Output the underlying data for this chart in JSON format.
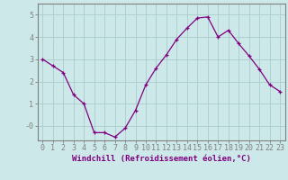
{
  "x": [
    0,
    1,
    2,
    3,
    4,
    5,
    6,
    7,
    8,
    9,
    10,
    11,
    12,
    13,
    14,
    15,
    16,
    17,
    18,
    19,
    20,
    21,
    22,
    23
  ],
  "y": [
    3.0,
    2.7,
    2.4,
    1.4,
    1.0,
    -0.3,
    -0.3,
    -0.5,
    -0.1,
    0.7,
    1.85,
    2.6,
    3.2,
    3.9,
    4.4,
    4.85,
    4.9,
    4.0,
    4.3,
    3.7,
    3.15,
    2.55,
    1.85,
    1.55
  ],
  "line_color": "#800080",
  "marker": "+",
  "xlabel": "Windchill (Refroidissement éolien,°C)",
  "xlim": [
    -0.5,
    23.5
  ],
  "ylim": [
    -0.65,
    5.5
  ],
  "xticks": [
    0,
    1,
    2,
    3,
    4,
    5,
    6,
    7,
    8,
    9,
    10,
    11,
    12,
    13,
    14,
    15,
    16,
    17,
    18,
    19,
    20,
    21,
    22,
    23
  ],
  "ytick_vals": [
    0,
    1,
    2,
    3,
    4,
    5
  ],
  "ytick_labels": [
    "-0",
    "1",
    "2",
    "3",
    "4",
    "5"
  ],
  "background_color": "#cce8e8",
  "grid_color": "#aacccc",
  "axis_color": "#808080",
  "label_color": "#800080",
  "font_size_xlabel": 6.5,
  "font_size_ticks": 6.0,
  "marker_size": 3,
  "line_width": 0.9
}
